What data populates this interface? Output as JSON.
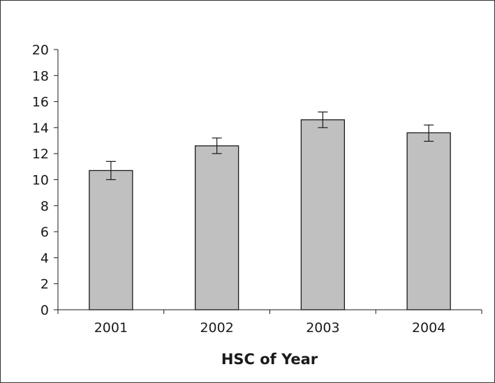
{
  "chart_data": {
    "type": "bar",
    "title": "",
    "xlabel": "HSC of Year",
    "ylabel": "",
    "categories": [
      "2001",
      "2002",
      "2003",
      "2004"
    ],
    "values": [
      10.7,
      12.6,
      14.6,
      13.6
    ],
    "error_low": [
      10.0,
      12.0,
      14.0,
      12.95
    ],
    "error_high": [
      11.4,
      13.2,
      15.2,
      14.2
    ],
    "ylim": [
      0,
      20
    ],
    "yticks": [
      0,
      2,
      4,
      6,
      8,
      10,
      12,
      14,
      16,
      18,
      20
    ],
    "grid": false,
    "legend": "none",
    "bar_color": "#c0c0c0",
    "edge_color": "#1a1a1a"
  }
}
